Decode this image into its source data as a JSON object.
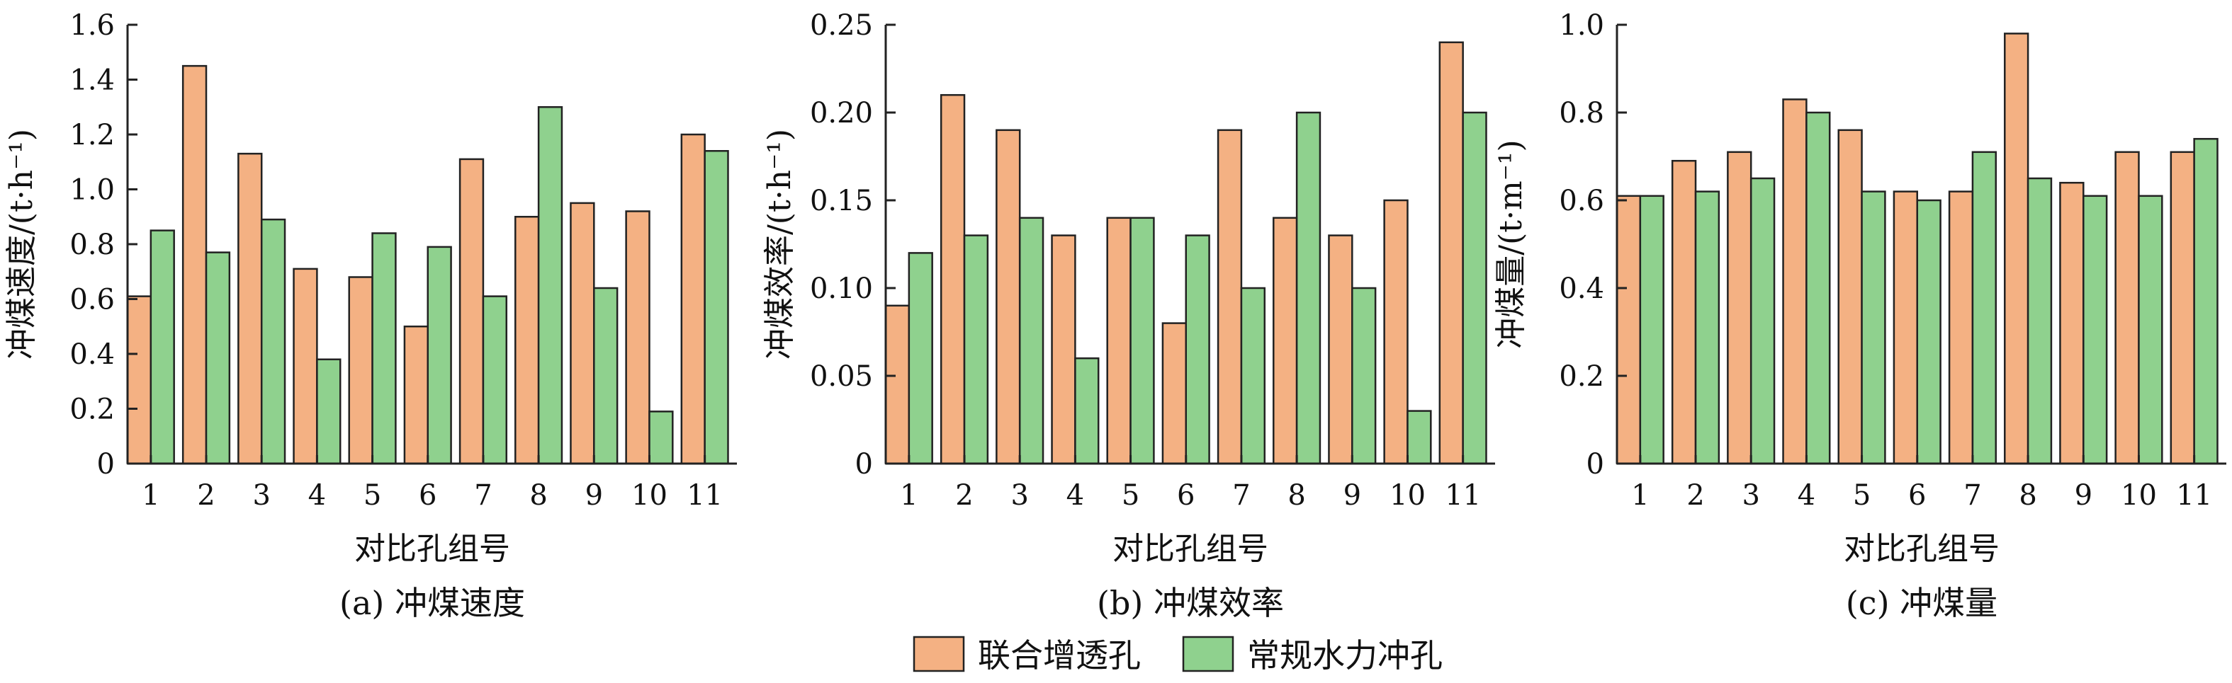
{
  "legend": {
    "series1_name": "联合增透孔",
    "series2_name": "常规水力冲孔"
  },
  "colors": {
    "series1": "#F4B183",
    "series2": "#8FD18E",
    "stroke": "#222222"
  },
  "chart_data": [
    {
      "type": "bar",
      "caption": "(a) 冲煤速度",
      "xlabel": "对比孔组号",
      "ylabel": "冲煤速度/(t·h⁻¹)",
      "categories": [
        "1",
        "2",
        "3",
        "4",
        "5",
        "6",
        "7",
        "8",
        "9",
        "10",
        "11"
      ],
      "ylim": [
        0,
        1.6
      ],
      "yticks": [
        "0",
        "0.2",
        "0.4",
        "0.6",
        "0.8",
        "1.0",
        "1.2",
        "1.4",
        "1.6"
      ],
      "series": [
        {
          "name": "联合增透孔",
          "values": [
            0.61,
            1.45,
            1.13,
            0.71,
            0.68,
            0.5,
            1.11,
            0.9,
            0.95,
            0.92,
            1.2
          ]
        },
        {
          "name": "常规水力冲孔",
          "values": [
            0.85,
            0.77,
            0.89,
            0.38,
            0.84,
            0.79,
            0.61,
            1.3,
            0.64,
            0.19,
            1.14
          ]
        }
      ]
    },
    {
      "type": "bar",
      "caption": "(b) 冲煤效率",
      "xlabel": "对比孔组号",
      "ylabel": "冲煤效率/(t·h⁻¹)",
      "categories": [
        "1",
        "2",
        "3",
        "4",
        "5",
        "6",
        "7",
        "8",
        "9",
        "10",
        "11"
      ],
      "ylim": [
        0,
        0.25
      ],
      "yticks": [
        "0",
        "0.05",
        "0.10",
        "0.15",
        "0.20",
        "0.25"
      ],
      "series": [
        {
          "name": "联合增透孔",
          "values": [
            0.09,
            0.21,
            0.19,
            0.13,
            0.14,
            0.08,
            0.19,
            0.14,
            0.13,
            0.15,
            0.24
          ]
        },
        {
          "name": "常规水力冲孔",
          "values": [
            0.12,
            0.13,
            0.14,
            0.06,
            0.14,
            0.13,
            0.1,
            0.2,
            0.1,
            0.03,
            0.2
          ]
        }
      ]
    },
    {
      "type": "bar",
      "caption": "(c) 冲煤量",
      "xlabel": "对比孔组号",
      "ylabel": "冲煤量/(t·m⁻¹)",
      "categories": [
        "1",
        "2",
        "3",
        "4",
        "5",
        "6",
        "7",
        "8",
        "9",
        "10",
        "11"
      ],
      "ylim": [
        0,
        1.0
      ],
      "yticks": [
        "0",
        "0.2",
        "0.4",
        "0.6",
        "0.8",
        "1.0"
      ],
      "series": [
        {
          "name": "联合增透孔",
          "values": [
            0.61,
            0.69,
            0.71,
            0.83,
            0.76,
            0.62,
            0.62,
            0.98,
            0.64,
            0.71,
            0.71
          ]
        },
        {
          "name": "常规水力冲孔",
          "values": [
            0.61,
            0.62,
            0.65,
            0.8,
            0.62,
            0.6,
            0.71,
            0.65,
            0.61,
            0.61,
            0.74
          ]
        }
      ]
    }
  ]
}
